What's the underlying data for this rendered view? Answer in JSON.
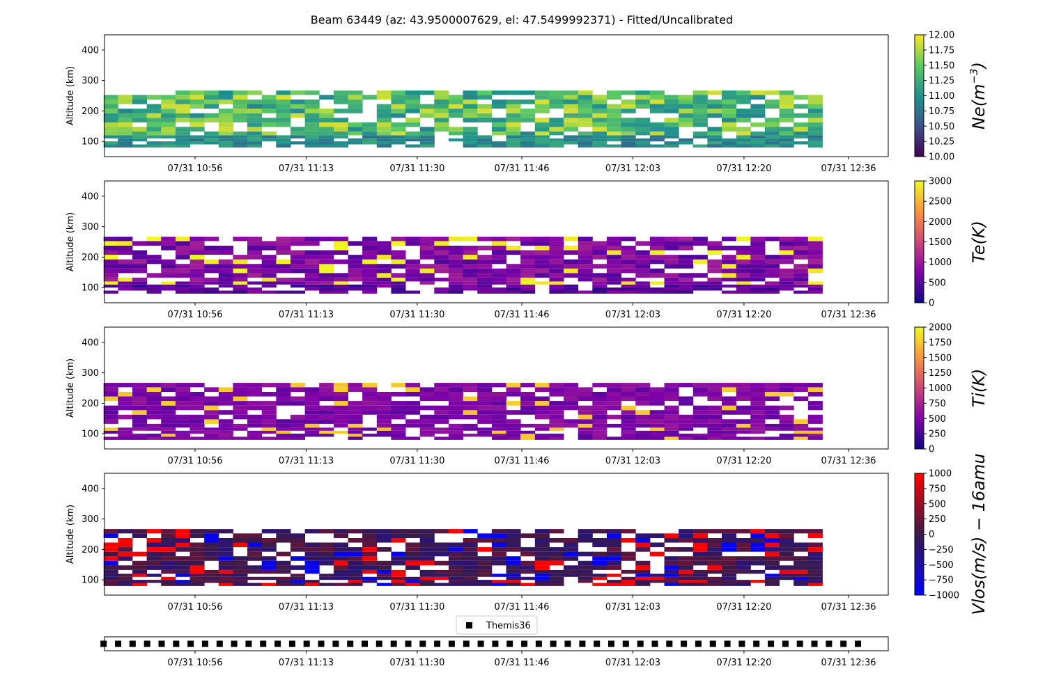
{
  "title": "Beam 63449 (az: 43.9500007629, el: 47.5499992371) - Fitted/Uncalibrated",
  "chart_data": [
    {
      "type": "heatmap",
      "id": "ne",
      "ylabel": "Altitude (km)",
      "yticks": [
        100,
        200,
        300,
        400
      ],
      "ylim": [
        50,
        450
      ],
      "xticks": [
        "07/31 10:56",
        "07/31 11:13",
        "07/31 11:30",
        "07/31 11:46",
        "07/31 12:03",
        "07/31 12:20",
        "07/31 12:36"
      ],
      "xlim_minutes": [
        42,
        161
      ],
      "colorbar": {
        "label": "Ne(m^-3)",
        "label_main": "Ne(m",
        "label_sup": "−3",
        "label_close": ")",
        "range": [
          10.0,
          12.0
        ],
        "ticks": [
          "10.00",
          "10.25",
          "10.50",
          "10.75",
          "11.00",
          "11.25",
          "11.50",
          "11.75",
          "12.00"
        ],
        "colormap": "viridis",
        "colors": [
          "#440154",
          "#3b528b",
          "#21918c",
          "#5ec962",
          "#fde725"
        ]
      }
    },
    {
      "type": "heatmap",
      "id": "te",
      "ylabel": "Altitude (km)",
      "yticks": [
        100,
        200,
        300,
        400
      ],
      "ylim": [
        50,
        450
      ],
      "xticks": [
        "07/31 10:56",
        "07/31 11:13",
        "07/31 11:30",
        "07/31 11:46",
        "07/31 12:03",
        "07/31 12:20",
        "07/31 12:36"
      ],
      "colorbar": {
        "label": "Te(K)",
        "range": [
          0,
          3000
        ],
        "ticks": [
          "0",
          "500",
          "1000",
          "1500",
          "2000",
          "2500",
          "3000"
        ],
        "colormap": "plasma",
        "colors": [
          "#0d0887",
          "#7e03a8",
          "#cc4778",
          "#f89540",
          "#f0f921"
        ]
      }
    },
    {
      "type": "heatmap",
      "id": "ti",
      "ylabel": "Altitude (km)",
      "yticks": [
        100,
        200,
        300,
        400
      ],
      "ylim": [
        50,
        450
      ],
      "xticks": [
        "07/31 10:56",
        "07/31 11:13",
        "07/31 11:30",
        "07/31 11:46",
        "07/31 12:03",
        "07/31 12:20",
        "07/31 12:36"
      ],
      "colorbar": {
        "label": "Ti(K)",
        "range": [
          0,
          2000
        ],
        "ticks": [
          "0",
          "250",
          "500",
          "750",
          "1000",
          "1250",
          "1500",
          "1750",
          "2000"
        ],
        "colormap": "plasma",
        "colors": [
          "#0d0887",
          "#7e03a8",
          "#cc4778",
          "#f89540",
          "#f0f921"
        ]
      }
    },
    {
      "type": "heatmap",
      "id": "vlos",
      "ylabel": "Altitude (km)",
      "yticks": [
        100,
        200,
        300,
        400
      ],
      "ylim": [
        50,
        450
      ],
      "xticks": [
        "07/31 10:56",
        "07/31 11:13",
        "07/31 11:30",
        "07/31 11:46",
        "07/31 12:03",
        "07/31 12:20",
        "07/31 12:36"
      ],
      "colorbar": {
        "label": "Vlos(m/s) − 16amu",
        "range": [
          -1000,
          1000
        ],
        "ticks": [
          "−1000",
          "−750",
          "−500",
          "−250",
          "0",
          "250",
          "500",
          "750",
          "1000"
        ],
        "colormap": "seismic-like",
        "colors": [
          "#0000ff",
          "#3a1a4a",
          "#ff0000"
        ]
      }
    },
    {
      "type": "scatter",
      "id": "themis",
      "legend": "Themis36",
      "xticks": [
        "07/31 10:56",
        "07/31 11:13",
        "07/31 11:30",
        "07/31 11:46",
        "07/31 12:03",
        "07/31 12:20",
        "07/31 12:36"
      ],
      "marker": "square",
      "marker_start_minutes": 42,
      "marker_interval_minutes": 2.22,
      "marker_count": 54
    }
  ],
  "profiles": {
    "altitudes_km": [
      85,
      95,
      105,
      115,
      125,
      140,
      155,
      170,
      185,
      200,
      215,
      230,
      245,
      260
    ],
    "time_start_minutes": 42,
    "time_step_minutes": 2.2,
    "time_count": 50,
    "ne_range": [
      10.0,
      11.8
    ],
    "te_range": [
      200,
      2600
    ],
    "ti_range": [
      300,
      1500
    ],
    "vlos_range": [
      -900,
      900
    ],
    "fill_fraction": 0.8
  }
}
